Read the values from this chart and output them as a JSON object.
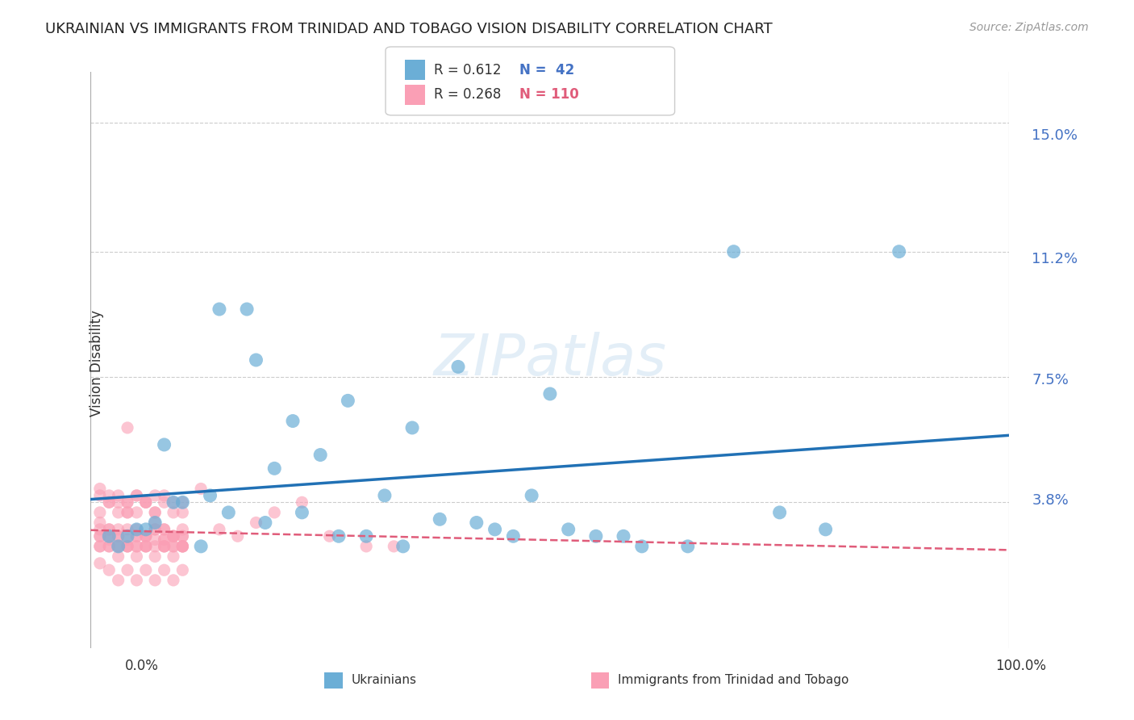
{
  "title": "UKRAINIAN VS IMMIGRANTS FROM TRINIDAD AND TOBAGO VISION DISABILITY CORRELATION CHART",
  "source": "Source: ZipAtlas.com",
  "ylabel": "Vision Disability",
  "xlabel_ticks": [
    "0.0%",
    "100.0%"
  ],
  "ytick_labels": [
    "15.0%",
    "11.2%",
    "7.5%",
    "3.8%"
  ],
  "ytick_values": [
    0.15,
    0.112,
    0.075,
    0.038
  ],
  "xlim": [
    0.0,
    1.0
  ],
  "ylim": [
    -0.005,
    0.165
  ],
  "background_color": "#ffffff",
  "grid_color": "#cccccc",
  "title_color": "#222222",
  "source_color": "#999999",
  "blue_color": "#6baed6",
  "pink_color": "#fa9fb5",
  "blue_line_color": "#2171b5",
  "pink_line_color": "#e05c7a",
  "legend_blue_r": "R = 0.612",
  "legend_blue_n": "N =  42",
  "legend_pink_r": "R = 0.268",
  "legend_pink_n": "N = 110",
  "watermark": "ZIPatlas",
  "blue_scatter_x": [
    0.05,
    0.08,
    0.12,
    0.18,
    0.22,
    0.04,
    0.06,
    0.09,
    0.13,
    0.15,
    0.2,
    0.25,
    0.28,
    0.32,
    0.35,
    0.38,
    0.4,
    0.44,
    0.48,
    0.5,
    0.55,
    0.6,
    0.65,
    0.7,
    0.75,
    0.8,
    0.88,
    0.02,
    0.03,
    0.07,
    0.1,
    0.14,
    0.17,
    0.19,
    0.23,
    0.27,
    0.3,
    0.34,
    0.42,
    0.46,
    0.52,
    0.58
  ],
  "blue_scatter_y": [
    0.03,
    0.055,
    0.025,
    0.08,
    0.062,
    0.028,
    0.03,
    0.038,
    0.04,
    0.035,
    0.048,
    0.052,
    0.068,
    0.04,
    0.06,
    0.033,
    0.078,
    0.03,
    0.04,
    0.07,
    0.028,
    0.025,
    0.025,
    0.112,
    0.035,
    0.03,
    0.112,
    0.028,
    0.025,
    0.032,
    0.038,
    0.095,
    0.095,
    0.032,
    0.035,
    0.028,
    0.028,
    0.025,
    0.032,
    0.028,
    0.03,
    0.028
  ],
  "pink_scatter_x": [
    0.01,
    0.02,
    0.03,
    0.04,
    0.05,
    0.06,
    0.07,
    0.08,
    0.09,
    0.1,
    0.01,
    0.02,
    0.03,
    0.04,
    0.05,
    0.06,
    0.07,
    0.08,
    0.09,
    0.1,
    0.01,
    0.02,
    0.03,
    0.04,
    0.05,
    0.06,
    0.07,
    0.08,
    0.09,
    0.1,
    0.01,
    0.02,
    0.03,
    0.04,
    0.05,
    0.06,
    0.07,
    0.08,
    0.09,
    0.1,
    0.01,
    0.02,
    0.03,
    0.04,
    0.05,
    0.06,
    0.07,
    0.08,
    0.09,
    0.1,
    0.01,
    0.02,
    0.03,
    0.04,
    0.05,
    0.06,
    0.07,
    0.08,
    0.09,
    0.1,
    0.01,
    0.02,
    0.03,
    0.04,
    0.05,
    0.06,
    0.07,
    0.08,
    0.09,
    0.1,
    0.01,
    0.02,
    0.03,
    0.04,
    0.05,
    0.06,
    0.07,
    0.08,
    0.09,
    0.1,
    0.01,
    0.02,
    0.03,
    0.04,
    0.05,
    0.06,
    0.07,
    0.08,
    0.09,
    0.1,
    0.01,
    0.02,
    0.03,
    0.04,
    0.05,
    0.06,
    0.07,
    0.08,
    0.09,
    0.1,
    0.12,
    0.14,
    0.16,
    0.18,
    0.2,
    0.23,
    0.26,
    0.3,
    0.33,
    0.04
  ],
  "pink_scatter_y": [
    0.025,
    0.027,
    0.028,
    0.03,
    0.025,
    0.028,
    0.03,
    0.027,
    0.025,
    0.028,
    0.028,
    0.03,
    0.025,
    0.027,
    0.028,
    0.025,
    0.03,
    0.027,
    0.025,
    0.028,
    0.032,
    0.03,
    0.028,
    0.035,
    0.03,
    0.028,
    0.032,
    0.03,
    0.028,
    0.025,
    0.025,
    0.028,
    0.03,
    0.025,
    0.028,
    0.025,
    0.027,
    0.025,
    0.028,
    0.03,
    0.035,
    0.038,
    0.04,
    0.038,
    0.035,
    0.038,
    0.04,
    0.038,
    0.035,
    0.038,
    0.02,
    0.018,
    0.015,
    0.018,
    0.015,
    0.018,
    0.015,
    0.018,
    0.015,
    0.018,
    0.028,
    0.025,
    0.025,
    0.025,
    0.025,
    0.028,
    0.025,
    0.025,
    0.028,
    0.025,
    0.04,
    0.038,
    0.035,
    0.038,
    0.04,
    0.038,
    0.035,
    0.03,
    0.028,
    0.025,
    0.042,
    0.04,
    0.038,
    0.035,
    0.04,
    0.038,
    0.035,
    0.04,
    0.038,
    0.035,
    0.03,
    0.025,
    0.022,
    0.025,
    0.022,
    0.025,
    0.022,
    0.025,
    0.022,
    0.025,
    0.042,
    0.03,
    0.028,
    0.032,
    0.035,
    0.038,
    0.028,
    0.025,
    0.025,
    0.06
  ]
}
